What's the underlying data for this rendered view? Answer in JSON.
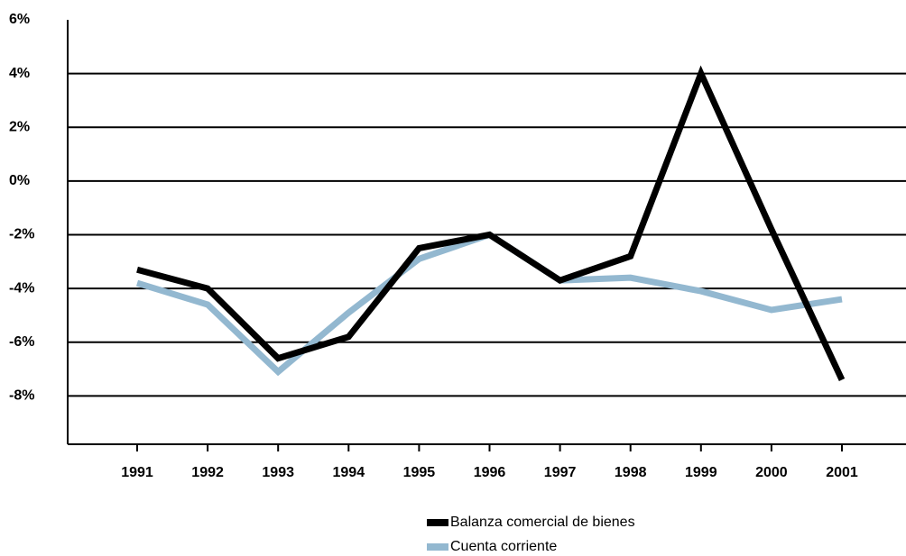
{
  "chart_data": {
    "type": "line",
    "categories": [
      "1991",
      "1992",
      "1993",
      "1994",
      "1995",
      "1996",
      "1997",
      "1998",
      "1999",
      "2000",
      "2001"
    ],
    "series": [
      {
        "name": "Balanza comercial de bienes",
        "color": "#000000",
        "values": [
          -3.3,
          -4.0,
          -6.6,
          -5.8,
          -2.5,
          -2.0,
          -3.7,
          -2.8,
          4.0,
          -1.8,
          -7.4
        ]
      },
      {
        "name": "Cuenta corriente",
        "color": "#93b8d0",
        "values": [
          -3.8,
          -4.6,
          -7.1,
          -4.9,
          -2.9,
          -2.0,
          -3.7,
          -3.6,
          -4.1,
          -4.8,
          -4.4
        ]
      }
    ],
    "ylim": [
      -9.8,
      6
    ],
    "yticks": [
      {
        "value": 6,
        "label": "6%"
      },
      {
        "value": 4,
        "label": "4%"
      },
      {
        "value": 2,
        "label": "2%"
      },
      {
        "value": 0,
        "label": "0%"
      },
      {
        "value": -2,
        "label": "-2%"
      },
      {
        "value": -4,
        "label": "-4%"
      },
      {
        "value": -6,
        "label": "-6%"
      },
      {
        "value": -8,
        "label": "-8%"
      }
    ],
    "grid": true
  }
}
